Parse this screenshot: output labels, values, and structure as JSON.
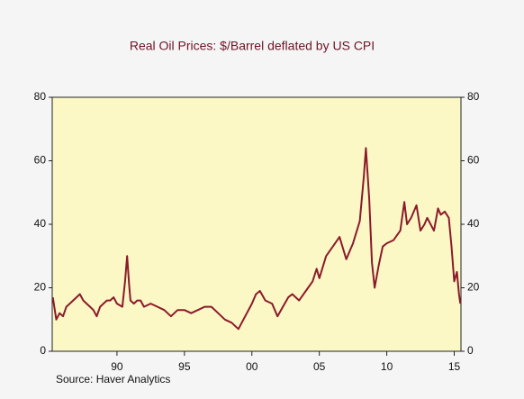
{
  "chart_data": {
    "type": "line",
    "title": "Real Oil Prices: $/Barrel deflated by US CPI",
    "source": "Source:   Haver Analytics",
    "x": [
      1985.25,
      1985.5,
      1985.75,
      1986,
      1986.25,
      1986.5,
      1986.75,
      1987,
      1987.25,
      1987.5,
      1987.75,
      1988,
      1988.25,
      1988.5,
      1988.75,
      1989,
      1989.25,
      1989.5,
      1989.75,
      1990,
      1990.4,
      1990.6,
      1990.75,
      1990.9,
      1991,
      1991.25,
      1991.5,
      1991.75,
      1992,
      1992.5,
      1993,
      1993.5,
      1994,
      1994.5,
      1995,
      1995.5,
      1996,
      1996.5,
      1997,
      1997.5,
      1998,
      1998.5,
      1999,
      1999.5,
      2000,
      2000.3,
      2000.6,
      2001,
      2001.5,
      2001.9,
      2002.3,
      2002.7,
      2003,
      2003.5,
      2004,
      2004.5,
      2004.8,
      2005,
      2005.5,
      2006,
      2006.5,
      2007,
      2007.5,
      2008,
      2008.3,
      2008.45,
      2008.7,
      2008.9,
      2009.1,
      2009.4,
      2009.7,
      2010,
      2010.5,
      2011,
      2011.3,
      2011.5,
      2011.8,
      2012.2,
      2012.5,
      2012.8,
      2013,
      2013.5,
      2013.8,
      2014,
      2014.3,
      2014.6,
      2014.8,
      2015,
      2015.2,
      2015.35,
      2015.45
    ],
    "series": [
      {
        "name": "Real oil price",
        "color": "#8b1a2a",
        "values": [
          17,
          10,
          12,
          11,
          14,
          15,
          16,
          17,
          18,
          16,
          15,
          14,
          13,
          11,
          14,
          15,
          16,
          16,
          17,
          15,
          14,
          22,
          30,
          21,
          16,
          15,
          16,
          16,
          14,
          15,
          14,
          13,
          11,
          13,
          13,
          12,
          13,
          14,
          14,
          12,
          10,
          9,
          7,
          11,
          15,
          18,
          19,
          16,
          15,
          11,
          14,
          17,
          18,
          16,
          19,
          22,
          26,
          23,
          30,
          33,
          36,
          29,
          34,
          41,
          55,
          64,
          48,
          28,
          20,
          27,
          33,
          34,
          35,
          38,
          47,
          40,
          42,
          46,
          38,
          40,
          42,
          38,
          45,
          43,
          44,
          42,
          33,
          22,
          25,
          18,
          15
        ]
      }
    ],
    "xlim": [
      1985.2,
      2015.5
    ],
    "ylim": [
      0,
      80
    ],
    "xticks": [
      {
        "value": 1990,
        "label": "90"
      },
      {
        "value": 1995,
        "label": "95"
      },
      {
        "value": 2000,
        "label": "00"
      },
      {
        "value": 2005,
        "label": "05"
      },
      {
        "value": 2010,
        "label": "10"
      },
      {
        "value": 2015,
        "label": "15"
      }
    ],
    "yticks": [
      0,
      20,
      40,
      60,
      80
    ]
  }
}
